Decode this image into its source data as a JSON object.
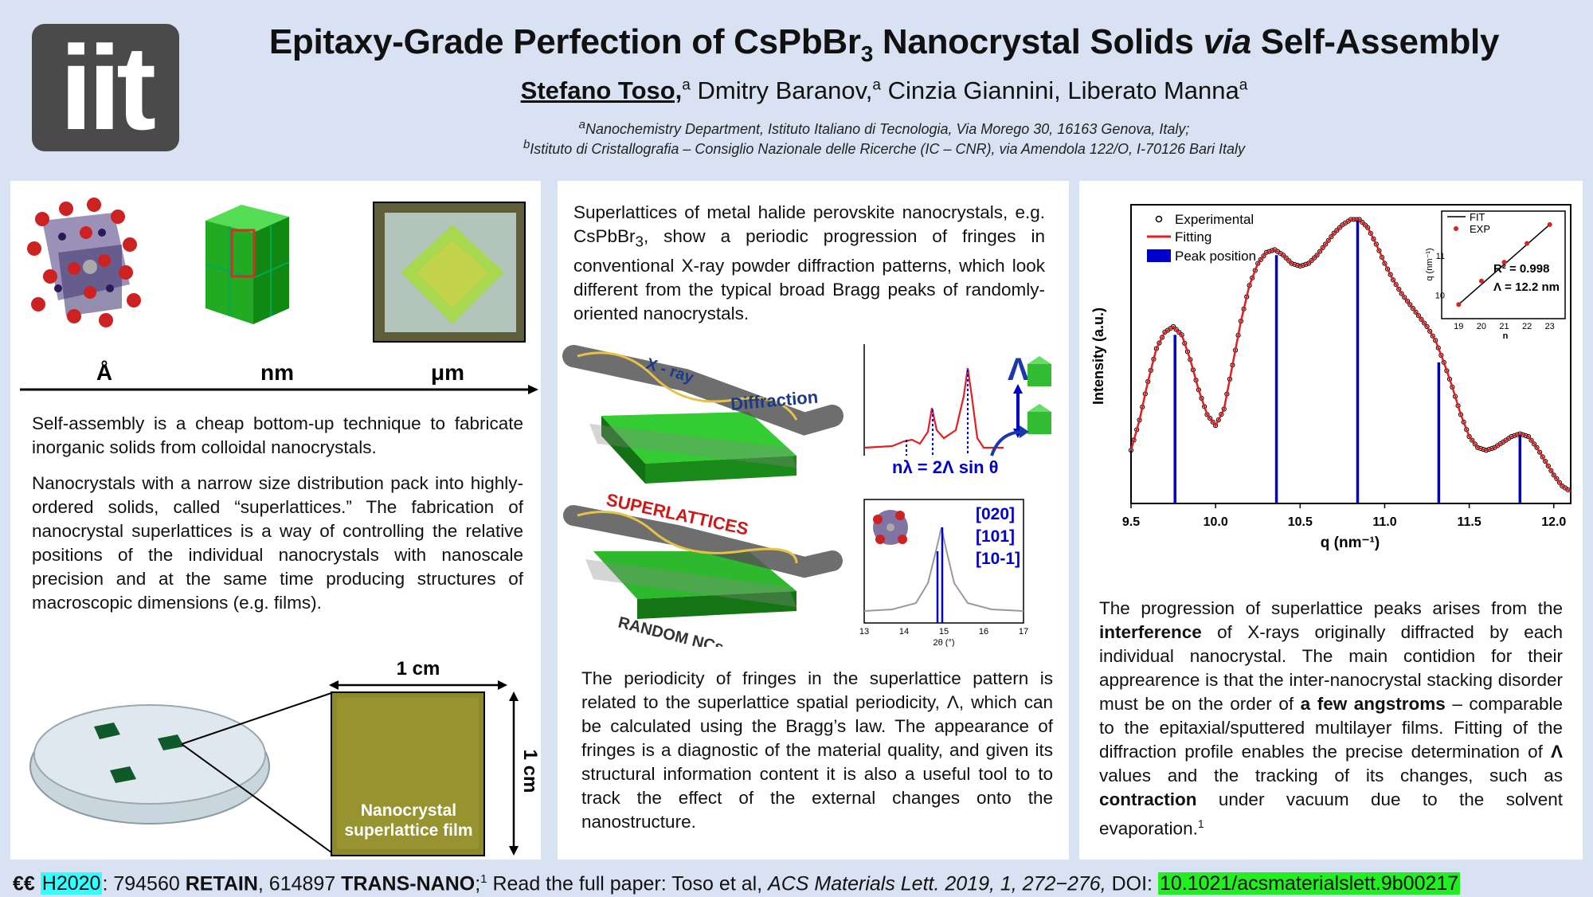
{
  "header": {
    "logo_text": "iit",
    "title_main": "Epitaxy-Grade Perfection of CsPbBr",
    "title_sub": "3",
    "title_mid": " Nanocrystal Solids ",
    "title_via": "via",
    "title_end": " Self-Assembly",
    "authors": {
      "presenter": "Stefano Toso,",
      "sup_a": "a",
      "author2": " Dmitry Baranov,",
      "author3": " Cinzia Giannini, Liberato Manna",
      "sup_end": "a"
    },
    "aff_a_sup": "a",
    "aff_a": "Nanochemistry Department, Istituto Italiano di Tecnologia, Via Morego 30, 16163 Genova, Italy;",
    "aff_b_sup": "b",
    "aff_b": "Istituto di Cristallografia – Consiglio Nazionale delle Ricerche (IC – CNR), via Amendola 122/O, I-70126 Bari Italy"
  },
  "left_panel": {
    "scale_labels": [
      "Å",
      "nm",
      "μm"
    ],
    "para1": "Self-assembly is a cheap bottom-up technique to fabricate inorganic solids from colloidal nanocrystals.",
    "para2": "Nanocrystals with a narrow size distribution pack into highly-ordered solids, called “superlattices.” The fabrication of nanocrystal superlattices is a way of controlling the relative positions of the individual nanocrystals with nanoscale precision and at the same time producing structures of macroscopic dimensions (e.g. films).",
    "dim_h": "1 cm",
    "dim_v": "1 cm",
    "film_label_1": "Nanocrystal",
    "film_label_2": "superlattice film"
  },
  "mid_panel": {
    "para_top_1": "Superlattices of metal halide perovskite nanocrystals, e.g. CsPbBr",
    "para_top_sub": "3",
    "para_top_2": ", show a periodic progression of fringes in conventional X-ray powder diffraction patterns, which look different from the typical broad Bragg peaks of randomly-oriented nanocrystals.",
    "xray_label": "X - ray",
    "diffraction_label": "Diffraction",
    "superlattices_label": "SUPERLATTICES",
    "random_label": "RANDOM NCs",
    "lambda_symbol": "Λ",
    "bragg_eq": "nλ = 2Λ sin θ",
    "miller": [
      "[020]",
      "[101]",
      "[10-1]"
    ],
    "inset_xticks": [
      "13",
      "14",
      "15",
      "16",
      "17"
    ],
    "inset_xlabel": "2θ (°)",
    "para_bottom": "The periodicity of fringes in the superlattice pattern is related to the superlattice spatial periodicity, Λ, which can be calculated using the Bragg’s law. The appearance of fringes is a diagnostic of the material quality, and given its structural information content it is also a useful tool to to track the effect of the external changes onto the nanostructure."
  },
  "right_panel": {
    "para_a": "The progression of superlattice peaks arises from the ",
    "para_b": "interference",
    "para_c": " of X-rays originally diffracted by each individual nanocrystal. The main contidion for their apprearence is that the inter-nanocrystal stacking disorder must be on the order of ",
    "para_d": "a few angstroms",
    "para_e": " – comparable to the epitaxial/sputtered multilayer films. Fitting of the diffraction profile enables the precise determination of ",
    "para_f": "Λ",
    "para_g": " values and the tracking of its changes, such as ",
    "para_h": "contraction",
    "para_i": " under vacuum due to the solvent evaporation.",
    "para_sup": "1"
  },
  "chart_data": [
    {
      "type": "line",
      "xlabel": "q (nm⁻¹)",
      "ylabel": "Intensity (a.u.)",
      "xlim": [
        9.5,
        12.1
      ],
      "x_ticks": [
        "9.5",
        "10.0",
        "10.5",
        "11.0",
        "11.5",
        "12.0"
      ],
      "y_scale": "log",
      "legend": [
        "Experimental",
        "Fitting",
        "Peak position"
      ],
      "legend_position": "top-left",
      "series": [
        {
          "name": "Fitting",
          "x": [
            9.5,
            9.55,
            9.6,
            9.65,
            9.7,
            9.75,
            9.8,
            9.85,
            9.9,
            9.95,
            10.0,
            10.05,
            10.1,
            10.15,
            10.2,
            10.25,
            10.3,
            10.35,
            10.4,
            10.45,
            10.5,
            10.55,
            10.6,
            10.65,
            10.7,
            10.75,
            10.8,
            10.85,
            10.9,
            10.95,
            11.0,
            11.05,
            11.1,
            11.15,
            11.2,
            11.25,
            11.3,
            11.35,
            11.4,
            11.45,
            11.5,
            11.55,
            11.6,
            11.65,
            11.7,
            11.75,
            11.8,
            11.85,
            11.9,
            11.95,
            12.0,
            12.05,
            12.1
          ],
          "values": [
            0.15,
            0.26,
            0.4,
            0.52,
            0.58,
            0.6,
            0.57,
            0.48,
            0.37,
            0.28,
            0.24,
            0.3,
            0.46,
            0.62,
            0.75,
            0.83,
            0.87,
            0.88,
            0.86,
            0.83,
            0.82,
            0.83,
            0.86,
            0.9,
            0.94,
            0.97,
            0.99,
            0.99,
            0.96,
            0.9,
            0.83,
            0.77,
            0.72,
            0.68,
            0.64,
            0.6,
            0.55,
            0.47,
            0.38,
            0.28,
            0.2,
            0.16,
            0.15,
            0.16,
            0.18,
            0.2,
            0.21,
            0.2,
            0.16,
            0.11,
            0.06,
            0.02,
            0.0
          ]
        }
      ],
      "peak_positions": [
        9.76,
        10.36,
        10.84,
        11.32,
        11.8
      ]
    },
    {
      "type": "scatter",
      "xlabel": "n",
      "ylabel": "q (nm⁻¹)",
      "x_ticks": [
        "19",
        "20",
        "21",
        "22",
        "23"
      ],
      "y_ticks": [
        "10",
        "11"
      ],
      "xlim": [
        18.5,
        23.5
      ],
      "ylim": [
        9.5,
        12.0
      ],
      "legend": [
        "FIT",
        "EXP"
      ],
      "legend_position": "top-left",
      "series": [
        {
          "name": "EXP",
          "x": [
            19,
            20,
            21,
            22,
            23
          ],
          "values": [
            9.76,
            10.36,
            10.84,
            11.32,
            11.8
          ]
        }
      ],
      "r2": "R² = 0.998",
      "lambda_text": "Λ = 12.2 nm"
    }
  ],
  "footer": {
    "euro": "€€",
    "h2020": "H2020",
    "grant1": ": 794560 ",
    "retain": "RETAIN",
    "grant2": ", 614897 ",
    "trans": "TRANS-NANO",
    "sup1": "1",
    "read": " Read the full paper: Toso et al, ",
    "journal": "ACS Materials Lett. 2019, 1, 272−276,",
    "doi_label": " DOI: ",
    "doi": "10.1021/acsmaterialslett.9b00217"
  },
  "colors": {
    "background": "#d9e2f3",
    "accent_blue": "#0000cc",
    "fit_red": "#e02020",
    "cube_green": "#22aa22"
  }
}
